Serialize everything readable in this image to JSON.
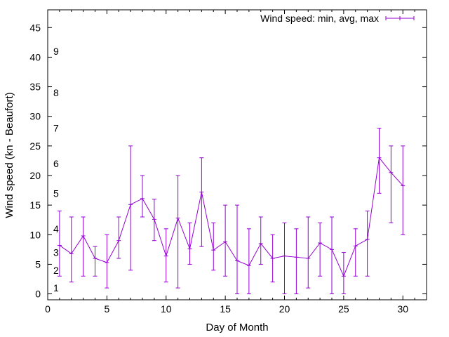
{
  "chart_data": {
    "type": "line",
    "xlabel": "Day of Month",
    "ylabel": "Wind speed (kn - Beaufort)",
    "xlim": [
      0,
      32
    ],
    "ylim": [
      -1,
      48
    ],
    "x_ticks": [
      0,
      5,
      10,
      15,
      20,
      25,
      30
    ],
    "y_ticks": [
      0,
      5,
      10,
      15,
      20,
      25,
      30,
      35,
      40,
      45
    ],
    "grid": false,
    "legend_position": "top-right",
    "series_color": "#9400d3",
    "series": [
      {
        "name": "Wind speed: min, avg, max",
        "x": [
          1,
          2,
          3,
          4,
          5,
          6,
          7,
          8,
          9,
          10,
          11,
          12,
          13,
          14,
          15,
          16,
          17,
          18,
          19,
          20,
          21,
          22,
          23,
          24,
          25,
          26,
          27,
          28,
          29,
          30
        ],
        "avg": [
          8.2,
          6.8,
          9.8,
          6.0,
          5.3,
          9.0,
          15.1,
          16.1,
          12.6,
          6.4,
          12.8,
          7.6,
          17.2,
          7.4,
          8.8,
          5.6,
          4.8,
          8.5,
          6.0,
          6.4,
          6.2,
          6.0,
          8.6,
          7.5,
          3.0,
          8.1,
          9.2,
          23.0,
          20.5,
          18.3
        ],
        "min": [
          3,
          2,
          3,
          3,
          1,
          6,
          4,
          13,
          9,
          2,
          1,
          5,
          8,
          4,
          3,
          0,
          0,
          5,
          2,
          0,
          0,
          1,
          3,
          0,
          0,
          3,
          3,
          17,
          12,
          10
        ],
        "max": [
          14,
          13,
          13,
          8,
          10,
          13,
          25,
          20,
          16,
          11,
          20,
          12,
          23,
          12,
          15,
          15,
          11,
          13,
          10,
          12,
          11,
          13,
          12,
          13,
          7,
          11,
          14,
          28,
          25,
          25
        ]
      }
    ],
    "annotations": [
      {
        "text": "1",
        "y": 1
      },
      {
        "text": "2",
        "y": 4
      },
      {
        "text": "3",
        "y": 7
      },
      {
        "text": "4",
        "y": 11
      },
      {
        "text": "5",
        "y": 17
      },
      {
        "text": "6",
        "y": 22
      },
      {
        "text": "7",
        "y": 28
      },
      {
        "text": "8",
        "y": 34
      },
      {
        "text": "9",
        "y": 41
      }
    ]
  }
}
